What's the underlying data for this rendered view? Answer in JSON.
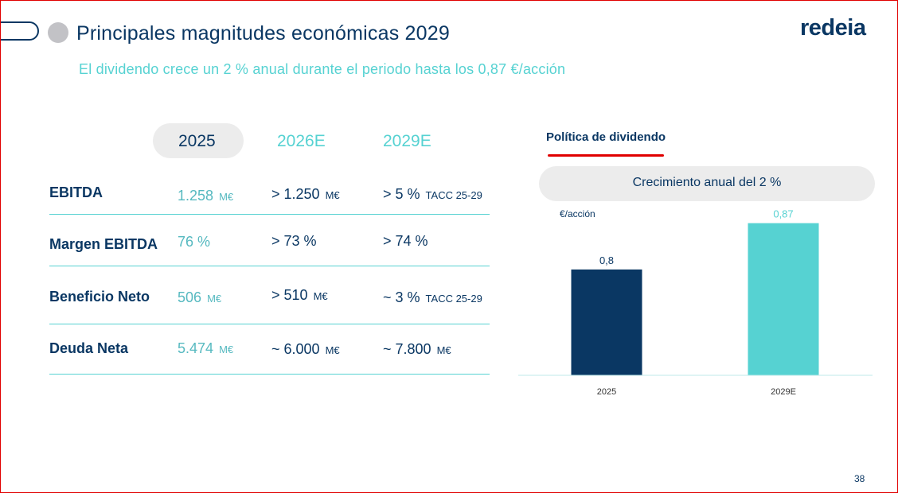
{
  "header": {
    "title": "Principales magnitudes económicas 2029",
    "subtitle": "El dividendo crece un 2 % anual durante el periodo hasta los 0,87 €/acción",
    "logo_text": "redeia"
  },
  "table": {
    "years": [
      "2025",
      "2026E",
      "2029E"
    ],
    "rows": [
      {
        "label": "EBITDA",
        "v2025": "1.258",
        "u2025": "M€",
        "v2026": "> 1.250",
        "u2026": "M€",
        "v2029": "> 5 %",
        "u2029": "TACC 25-29"
      },
      {
        "label": "Margen EBITDA",
        "v2025": "76 %",
        "u2025": "",
        "v2026": "> 73 %",
        "u2026": "",
        "v2029": "> 74 %",
        "u2029": ""
      },
      {
        "label": "Beneficio Neto",
        "v2025": "506",
        "u2025": "M€",
        "v2026": "> 510",
        "u2026": "M€",
        "v2029": "~ 3 %",
        "u2029": "TACC 25-29"
      },
      {
        "label": "Deuda Neta",
        "v2025": "5.474",
        "u2025": "M€",
        "v2026": "~ 6.000",
        "u2026": "M€",
        "v2029": "~ 7.800",
        "u2029": "M€"
      }
    ]
  },
  "dividend": {
    "title": "Política de dividendo",
    "growth_label": "Crecimiento anual del 2 %"
  },
  "chart_data": {
    "type": "bar",
    "title": "",
    "xlabel": "",
    "ylabel": "€/acción",
    "categories": [
      "2025",
      "2029E"
    ],
    "values": [
      0.8,
      0.87
    ],
    "value_labels": [
      "0,8",
      "0,87"
    ],
    "colors": [
      "#0a3763",
      "#56d2d2"
    ],
    "ylim": [
      0.64,
      0.89
    ],
    "grid": false,
    "legend": "none"
  },
  "footer": {
    "page_number": "38"
  }
}
